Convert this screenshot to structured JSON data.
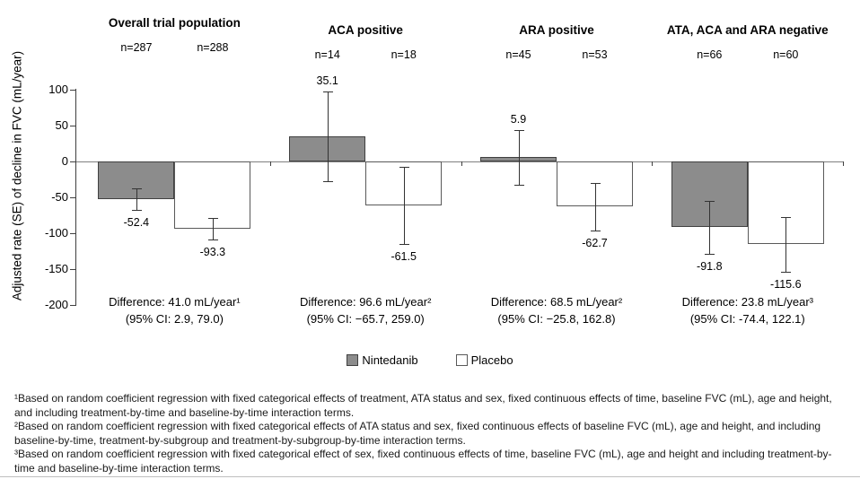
{
  "chart_data": {
    "type": "bar",
    "title": "",
    "xlabel": "",
    "ylabel": "Adjusted rate (SE) of decline in FVC (mL/year)",
    "ylim": [
      -200,
      100
    ],
    "yticks": [
      100,
      50,
      0,
      -50,
      -100,
      -150,
      -200
    ],
    "grid": false,
    "legend_position": "bottom",
    "categories": [
      "Overall trial population",
      "ACA positive",
      "ARA positive",
      "ATA, ACA and ARA negative"
    ],
    "series": [
      {
        "name": "Nintedanib",
        "values": [
          -52.4,
          35.1,
          5.9,
          -91.8
        ]
      },
      {
        "name": "Placebo",
        "values": [
          -93.3,
          -61.5,
          -62.7,
          -115.6
        ]
      }
    ],
    "groups": [
      {
        "label": "Overall trial population",
        "bars": [
          {
            "series": "Nintedanib",
            "n": "n=287",
            "value": -52.4,
            "se": 15,
            "value_label": "-52.4"
          },
          {
            "series": "Placebo",
            "n": "n=288",
            "value": -93.3,
            "se": 15,
            "value_label": "-93.3"
          }
        ],
        "difference_line1": "Difference: 41.0 mL/year¹",
        "difference_line2": "(95% CI: 2.9, 79.0)"
      },
      {
        "label": "ACA positive",
        "bars": [
          {
            "series": "Nintedanib",
            "n": "n=14",
            "value": 35.1,
            "se": 62,
            "value_label": "35.1"
          },
          {
            "series": "Placebo",
            "n": "n=18",
            "value": -61.5,
            "se": 54,
            "value_label": "-61.5"
          }
        ],
        "difference_line1": "Difference: 96.6 mL/year²",
        "difference_line2": "(95% CI: −65.7, 259.0)"
      },
      {
        "label": "ARA positive",
        "bars": [
          {
            "series": "Nintedanib",
            "n": "n=45",
            "value": 5.9,
            "se": 38,
            "value_label": "5.9"
          },
          {
            "series": "Placebo",
            "n": "n=53",
            "value": -62.7,
            "se": 33,
            "value_label": "-62.7"
          }
        ],
        "difference_line1": "Difference: 68.5 mL/year²",
        "difference_line2": "(95% CI: −25.8, 162.8)"
      },
      {
        "label": "ATA, ACA and ARA negative",
        "bars": [
          {
            "series": "Nintedanib",
            "n": "n=66",
            "value": -91.8,
            "se": 37,
            "value_label": "-91.8"
          },
          {
            "series": "Placebo",
            "n": "n=60",
            "value": -115.6,
            "se": 38,
            "value_label": "-115.6"
          }
        ],
        "difference_line1": "Difference: 23.8 mL/year³",
        "difference_line2": "(95% CI: -74.4, 122.1)"
      }
    ],
    "legend": [
      {
        "label": "Nintedanib",
        "fill": "#8c8c8c"
      },
      {
        "label": "Placebo",
        "fill": "#ffffff"
      }
    ]
  },
  "colors": {
    "nintedanib_fill": "#8c8c8c",
    "placebo_fill": "#ffffff",
    "bar_border_dark": "#404040",
    "bar_border_light": "#595959",
    "axis_line": "#3f3f3f",
    "zero_line": "#7f7f7f",
    "error_bar": "#333333"
  },
  "footnotes": [
    "¹Based on random coefficient regression with fixed categorical effects of treatment, ATA status and sex, fixed continuous effects of time, baseline FVC (mL), age and height, and including treatment-by-time and baseline-by-time interaction terms.",
    "²Based on random coefficient regression with fixed categorical effects of ATA status and sex, fixed continuous effects of baseline FVC (mL), age and height, and including baseline-by-time, treatment-by-subgroup and treatment-by-subgroup-by-time interaction terms.",
    "³Based on random coefficient regression with fixed categorical effect of sex, fixed continuous effects of time, baseline FVC (mL), age and height and including treatment-by-time and baseline-by-time interaction terms."
  ]
}
